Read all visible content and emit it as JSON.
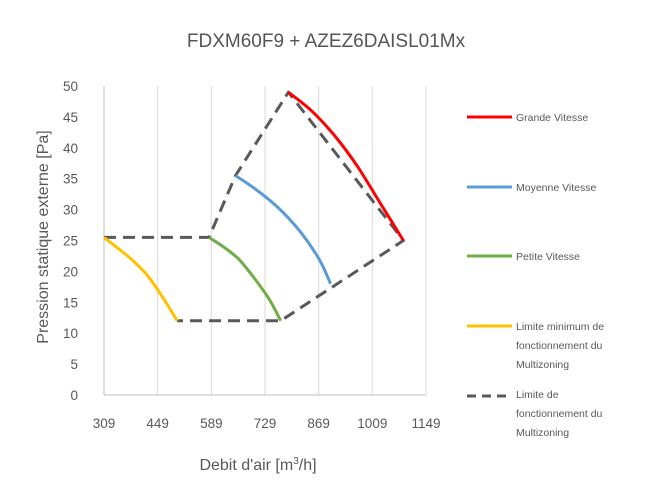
{
  "chart_data": {
    "type": "line",
    "title": "FDXM60F9 + AZEZ6DAISL01Mx",
    "xlabel": "Debit d'air [m",
    "xlabel_superscript": "3",
    "xlabel_suffix": "/h]",
    "ylabel": "Pression statique externe [Pa]",
    "xlim": [
      309,
      1149
    ],
    "ylim": [
      0,
      50
    ],
    "x_ticks": [
      309,
      449,
      589,
      729,
      869,
      1009,
      1149
    ],
    "y_ticks": [
      0,
      5,
      10,
      15,
      20,
      25,
      30,
      35,
      40,
      45,
      50
    ],
    "grid": "vertical",
    "legend_position": "right",
    "series": [
      {
        "name": "Grande Vitesse",
        "color": "#ff0000",
        "style": "solid",
        "x": [
          790,
          850,
          910,
          970,
          1030,
          1090
        ],
        "y": [
          49,
          46,
          42,
          37,
          31,
          25
        ]
      },
      {
        "name": "Moyenne Vitesse",
        "color": "#5b9bd5",
        "style": "solid",
        "x": [
          652,
          700,
          760,
          820,
          870,
          900
        ],
        "y": [
          35.5,
          33.5,
          30.5,
          26.5,
          22,
          18
        ]
      },
      {
        "name": "Petite Vitesse",
        "color": "#70ad47",
        "style": "solid",
        "x": [
          583,
          620,
          660,
          700,
          740,
          770
        ],
        "y": [
          25.5,
          24,
          22,
          19,
          15.5,
          12
        ]
      },
      {
        "name": "Limite minimum de fonctionnement du Multizoning",
        "color": "#ffc000",
        "style": "solid",
        "x": [
          309,
          340,
          380,
          420,
          460,
          500
        ],
        "y": [
          25.5,
          24,
          22,
          19.5,
          16,
          12
        ]
      },
      {
        "name": "Limite de fonctionnement du Multizoning",
        "color": "#595959",
        "style": "dashed",
        "x": [
          309,
          583,
          652,
          790,
          1090,
          770,
          500
        ],
        "y": [
          25.5,
          25.5,
          35.5,
          49,
          25,
          12,
          12
        ]
      }
    ]
  },
  "legend": {
    "grande_vitesse": "Grande Vitesse",
    "moyenne_vitesse": "Moyenne Vitesse",
    "petite_vitesse": "Petite Vitesse",
    "limite_min_line1": "Limite minimum de",
    "limite_min_line2": "fonctionnement du",
    "limite_min_line3": "Multizoning",
    "limite_line1": "Limite de",
    "limite_line2": "fonctionnement du",
    "limite_line3": "Multizoning"
  }
}
